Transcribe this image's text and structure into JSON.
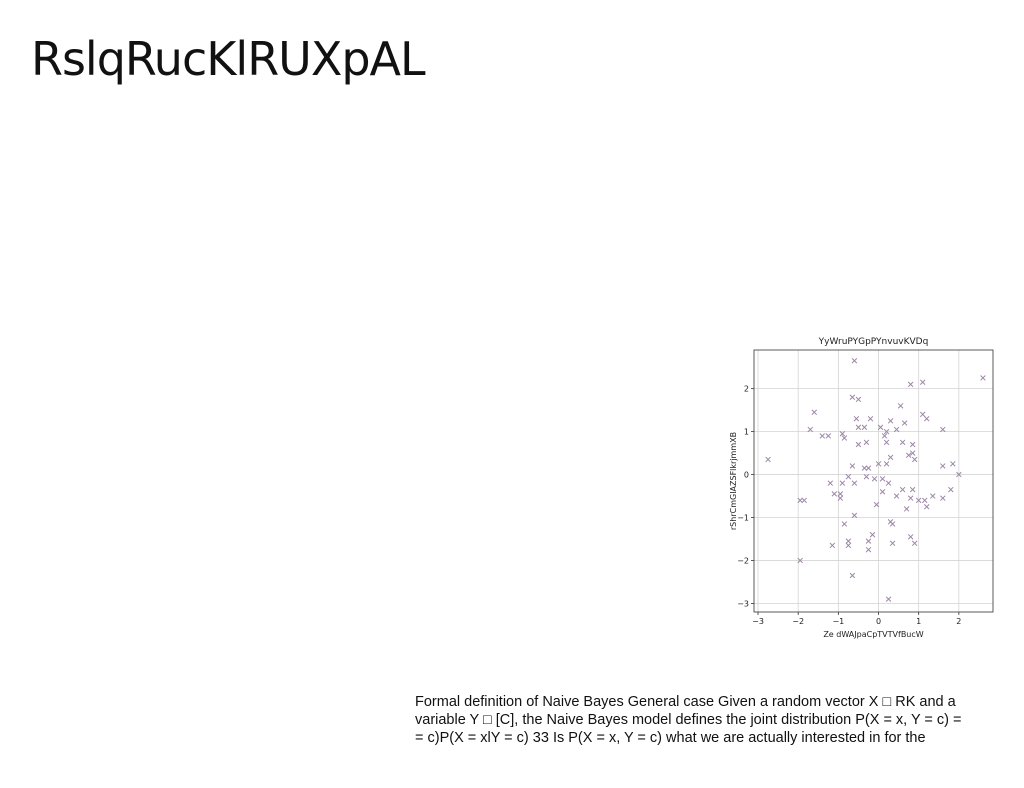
{
  "slide": {
    "title": "RslqRucKlRUXpAL",
    "body_lines": [
      "Formal definition of Naive Bayes General case Given a random vector X □ RK and a",
      "variable Y □ [C], the Naive Bayes model defines the joint distribution P(X = x, Y = c) =",
      "= c)P(X = xlY = c) 33 Is P(X = x, Y = c) what we are actually interested in for the"
    ]
  },
  "chart_data": {
    "type": "scatter",
    "title": "YyWruPYGpPYnvuvKVDq",
    "xlabel": "Ze dWAJpaCpTVTVfBucW",
    "ylabel": "rShrCmGIAZSFlkrjmmXB",
    "xlim": [
      -3.1,
      2.85
    ],
    "ylim": [
      -3.2,
      2.9
    ],
    "xticks": [
      -3,
      -2,
      -1,
      0,
      1,
      2
    ],
    "xtick_labels": [
      "−3",
      "−2",
      "−1",
      "0",
      "1",
      "2"
    ],
    "yticks": [
      -3,
      -2,
      -1,
      0,
      1,
      2
    ],
    "ytick_labels": [
      "−3",
      "−2",
      "−1",
      "0",
      "1",
      "2"
    ],
    "grid": true,
    "marker": "x",
    "marker_color": "#9d86a8",
    "points": [
      [
        -0.6,
        2.65
      ],
      [
        2.6,
        2.25
      ],
      [
        0.8,
        2.1
      ],
      [
        1.1,
        2.15
      ],
      [
        -0.65,
        1.8
      ],
      [
        -0.5,
        1.75
      ],
      [
        -1.6,
        1.45
      ],
      [
        0.55,
        1.6
      ],
      [
        1.1,
        1.4
      ],
      [
        1.2,
        1.3
      ],
      [
        -0.55,
        1.3
      ],
      [
        -0.2,
        1.3
      ],
      [
        0.3,
        1.25
      ],
      [
        -0.5,
        1.1
      ],
      [
        -0.35,
        1.1
      ],
      [
        0.05,
        1.1
      ],
      [
        0.2,
        1.0
      ],
      [
        0.45,
        1.05
      ],
      [
        0.65,
        1.2
      ],
      [
        -1.7,
        1.05
      ],
      [
        1.6,
        1.05
      ],
      [
        -1.4,
        0.9
      ],
      [
        -1.25,
        0.9
      ],
      [
        -0.85,
        0.85
      ],
      [
        -0.9,
        0.95
      ],
      [
        0.15,
        0.9
      ],
      [
        -0.5,
        0.7
      ],
      [
        -0.3,
        0.75
      ],
      [
        0.2,
        0.75
      ],
      [
        0.6,
        0.75
      ],
      [
        0.85,
        0.7
      ],
      [
        0.85,
        0.5
      ],
      [
        0.75,
        0.45
      ],
      [
        0.9,
        0.35
      ],
      [
        -2.75,
        0.35
      ],
      [
        -0.65,
        0.2
      ],
      [
        -0.35,
        0.15
      ],
      [
        -0.25,
        0.15
      ],
      [
        0.0,
        0.25
      ],
      [
        0.2,
        0.25
      ],
      [
        0.3,
        0.4
      ],
      [
        1.6,
        0.2
      ],
      [
        1.85,
        0.25
      ],
      [
        2.0,
        0.0
      ],
      [
        -0.75,
        -0.05
      ],
      [
        -0.3,
        -0.05
      ],
      [
        -0.1,
        -0.1
      ],
      [
        0.1,
        -0.1
      ],
      [
        -1.2,
        -0.2
      ],
      [
        -0.9,
        -0.2
      ],
      [
        -0.6,
        -0.2
      ],
      [
        0.25,
        -0.2
      ],
      [
        0.1,
        -0.4
      ],
      [
        0.6,
        -0.35
      ],
      [
        0.85,
        -0.35
      ],
      [
        1.8,
        -0.35
      ],
      [
        -1.1,
        -0.45
      ],
      [
        -0.95,
        -0.45
      ],
      [
        -0.95,
        -0.55
      ],
      [
        0.45,
        -0.5
      ],
      [
        0.8,
        -0.55
      ],
      [
        1.0,
        -0.6
      ],
      [
        1.15,
        -0.6
      ],
      [
        1.35,
        -0.5
      ],
      [
        1.6,
        -0.55
      ],
      [
        -1.95,
        -0.6
      ],
      [
        -1.85,
        -0.6
      ],
      [
        -0.05,
        -0.7
      ],
      [
        1.2,
        -0.75
      ],
      [
        0.7,
        -0.8
      ],
      [
        -0.6,
        -0.95
      ],
      [
        0.3,
        -1.1
      ],
      [
        0.35,
        -1.15
      ],
      [
        -0.85,
        -1.15
      ],
      [
        -0.15,
        -1.4
      ],
      [
        0.8,
        -1.45
      ],
      [
        -0.75,
        -1.55
      ],
      [
        -0.25,
        -1.55
      ],
      [
        -1.15,
        -1.65
      ],
      [
        -0.75,
        -1.65
      ],
      [
        0.35,
        -1.6
      ],
      [
        0.9,
        -1.6
      ],
      [
        -0.25,
        -1.75
      ],
      [
        -1.95,
        -2.0
      ],
      [
        -0.65,
        -2.35
      ],
      [
        0.25,
        -2.9
      ]
    ]
  }
}
